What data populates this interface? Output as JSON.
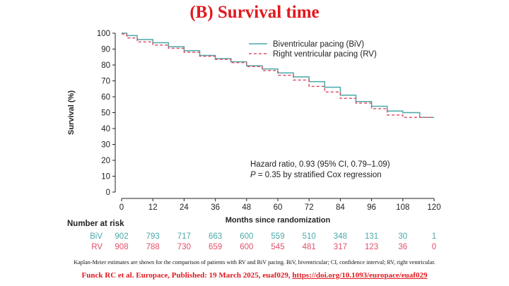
{
  "slide": {
    "title": "(B) Survival time",
    "caption": "Kaplan-Meier estimates are shown for the comparison of patients with RV and BiV pacing. BiV, biventricular; CI, confidence interval; RV, right ventricular.",
    "citation_text": "Funck RC et al. Europace, Published: 19 March 2025, euaf029, ",
    "citation_link": "https://doi.org/10.1093/europace/euaf029"
  },
  "chart_data": {
    "type": "line",
    "ylabel": "Survival (%)",
    "xlabel": "Months since randomization",
    "xlim": [
      0,
      120
    ],
    "ylim": [
      0,
      100
    ],
    "xticks": [
      0,
      12,
      24,
      36,
      48,
      60,
      72,
      84,
      96,
      108,
      120
    ],
    "yticks": [
      0,
      10,
      20,
      30,
      40,
      50,
      60,
      70,
      80,
      90,
      100
    ],
    "grid": false,
    "legend_position": "top-right",
    "colors": {
      "BiV": "#4aa8a8",
      "RV": "#e0506a"
    },
    "series": [
      {
        "name": "Biventricular pacing (BiV)",
        "style": "solid",
        "x": [
          0,
          2,
          6,
          12,
          18,
          24,
          30,
          36,
          42,
          48,
          54,
          60,
          66,
          72,
          78,
          84,
          90,
          96,
          102,
          108,
          114,
          114.5,
          120
        ],
        "y": [
          100,
          98.5,
          96,
          94,
          91.5,
          89,
          86,
          84,
          82,
          79.5,
          77.5,
          75,
          72.5,
          69.5,
          66,
          61,
          57,
          54,
          51,
          50,
          50,
          47,
          47
        ]
      },
      {
        "name": "Right ventricular pacing (RV)",
        "style": "dashed",
        "x": [
          0,
          2,
          6,
          12,
          18,
          24,
          30,
          36,
          42,
          48,
          54,
          60,
          66,
          72,
          78,
          84,
          90,
          96,
          102,
          108,
          114,
          120
        ],
        "y": [
          99.5,
          97,
          94.5,
          92.5,
          90.5,
          88,
          85.5,
          83.5,
          81.5,
          79,
          76.5,
          73.5,
          70.5,
          66.5,
          63,
          59,
          56,
          52.5,
          48.5,
          47,
          47,
          47
        ]
      }
    ],
    "annotation": {
      "line1": "Hazard ratio, 0.93 (95% CI, 0.79–1.09)",
      "line2_italic": "P",
      "line2_rest": " = 0.35 by stratified Cox regression"
    },
    "risk_table": {
      "title": "Number at risk",
      "rows": [
        {
          "label": "BiV",
          "values": [
            902,
            793,
            717,
            663,
            600,
            559,
            510,
            348,
            131,
            30,
            1
          ]
        },
        {
          "label": "RV",
          "values": [
            908,
            788,
            730,
            659,
            600,
            545,
            481,
            317,
            123,
            36,
            0
          ]
        }
      ]
    }
  }
}
